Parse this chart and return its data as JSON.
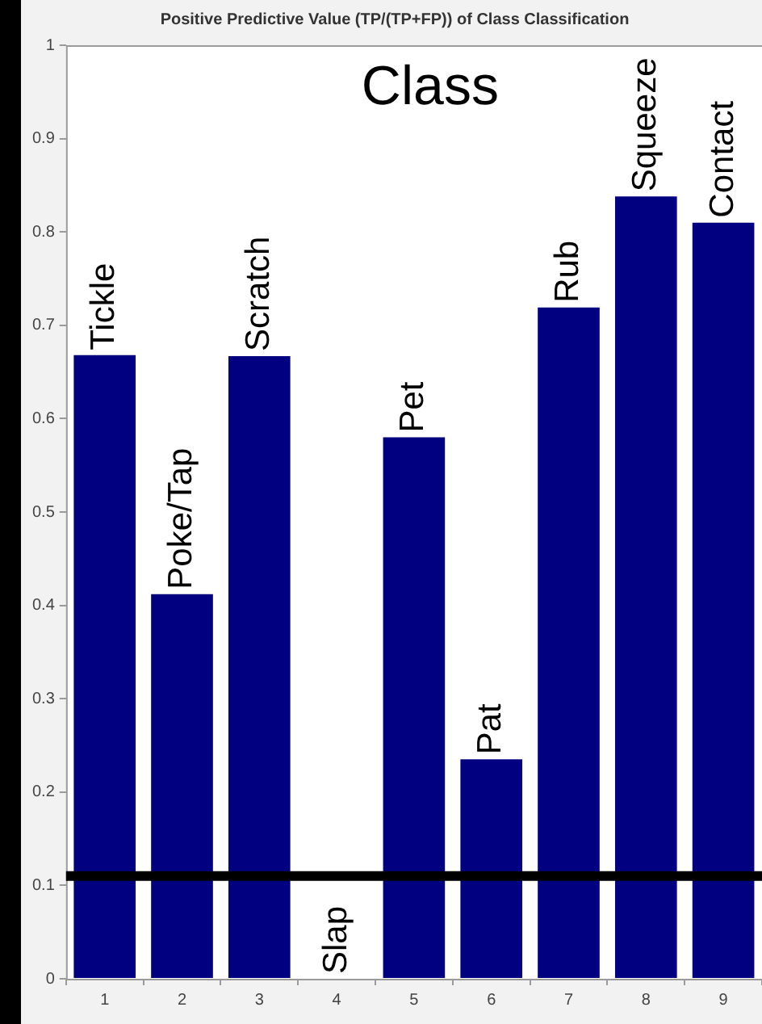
{
  "chart_data": {
    "type": "bar",
    "title": "Positive Predictive Value (TP/(TP+FP)) of Class Classification",
    "categories": [
      "1",
      "2",
      "3",
      "4",
      "5",
      "6",
      "7",
      "8",
      "9"
    ],
    "values": [
      0.668,
      0.412,
      0.667,
      0,
      0.58,
      0.235,
      0.719,
      0.838,
      0.81
    ],
    "color": "#000080",
    "ylim": [
      0,
      1
    ],
    "yticks": [
      0,
      0.1,
      0.2,
      0.3,
      0.4,
      0.5,
      0.6,
      0.7,
      0.8,
      0.9,
      1
    ],
    "grid": false,
    "legend": false,
    "ref_lines": [
      {
        "axis": "y",
        "value": 0.11,
        "color": "#000000"
      }
    ],
    "annotations": [
      "Class",
      {
        "text": "Tickle",
        "x": "1",
        "y": 0.668
      },
      {
        "text": "Poke/Tap",
        "x": "2",
        "y": 0.412
      },
      {
        "text": "Scratch",
        "x": "3",
        "y": 0.667
      },
      {
        "text": "Slap",
        "x": "4",
        "y": 0
      },
      {
        "text": "Pet",
        "x": "5",
        "y": 0.58
      },
      {
        "text": "Pat",
        "x": "6",
        "y": 0.235
      },
      {
        "text": "Rub",
        "x": "7",
        "y": 0.719
      },
      {
        "text": "Squeeze",
        "x": "8",
        "y": 0.838
      },
      {
        "text": "Contact",
        "x": "9",
        "y": 0.81
      }
    ]
  }
}
